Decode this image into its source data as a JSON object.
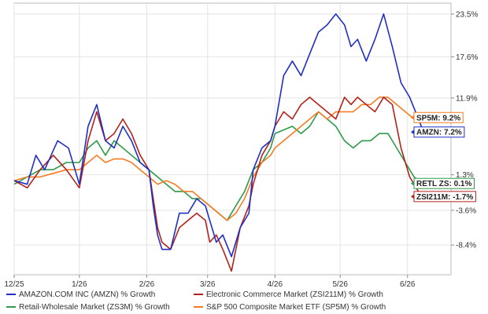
{
  "colors": {
    "amzn": "#1f2fc4",
    "zsi211m": "#b2221b",
    "zs3m": "#2e9a4a",
    "sp5m": "#f57c23"
  },
  "chart_data": {
    "type": "line",
    "title": "",
    "xlabel": "",
    "ylabel": "",
    "ylim": [
      -12.5,
      25
    ],
    "y_ticks": [
      "23.5%",
      "17.6%",
      "11.9%",
      "1.3%",
      "-3.6%",
      "-8.4%"
    ],
    "y_tick_values": [
      23.5,
      17.6,
      11.9,
      1.3,
      -3.6,
      -8.4
    ],
    "x_ticks": [
      "12/25",
      "1/26",
      "2/26",
      "3/26",
      "4/26",
      "5/26",
      "6/26"
    ],
    "x_tick_values": [
      0,
      30,
      61,
      89,
      120,
      150,
      181
    ],
    "grid": true,
    "legend_position": "bottom",
    "series": [
      {
        "key": "amzn",
        "name": "AMAZON.COM INC (AMZN) % Growth",
        "end_label": "AMZN: 7.2%",
        "x": [
          0,
          6,
          10,
          14,
          20,
          25,
          30,
          34,
          38,
          42,
          46,
          50,
          54,
          58,
          62,
          64,
          66,
          68,
          72,
          76,
          80,
          84,
          88,
          90,
          93,
          96,
          100,
          104,
          108,
          110,
          114,
          118,
          120,
          124,
          128,
          132,
          136,
          140,
          144,
          148,
          152,
          155,
          158,
          162,
          166,
          170,
          174,
          178,
          182,
          186,
          188,
          192
        ],
        "values": [
          0.5,
          0,
          4,
          2,
          6,
          5,
          0,
          8,
          11,
          6,
          5,
          8,
          6,
          3,
          2,
          -3,
          -7,
          -9,
          -9,
          -4,
          -4,
          -2,
          -3,
          -5,
          -8,
          -7,
          -10,
          -6,
          -4,
          2,
          5,
          6,
          8,
          15,
          17,
          15,
          18,
          21,
          22,
          23.5,
          22,
          19,
          20,
          17,
          20,
          23.5,
          19,
          14,
          12,
          9,
          7.5,
          7.2
        ]
      },
      {
        "key": "zsi211m",
        "name": "Electronic Commerce Market (ZSI211M) % Growth",
        "end_label": "ZSI211M: -1.7%",
        "x": [
          0,
          6,
          12,
          18,
          24,
          30,
          34,
          38,
          42,
          46,
          50,
          54,
          58,
          62,
          64,
          66,
          68,
          72,
          76,
          80,
          84,
          88,
          90,
          93,
          96,
          100,
          104,
          108,
          110,
          114,
          118,
          120,
          124,
          128,
          132,
          136,
          140,
          144,
          148,
          152,
          155,
          158,
          162,
          166,
          170,
          174,
          178,
          182,
          186,
          188,
          192
        ],
        "values": [
          0.5,
          -0.5,
          2,
          4,
          2,
          -0.5,
          6,
          10,
          6,
          7,
          9,
          7,
          4,
          2,
          -2,
          -6,
          -8,
          -9,
          -6,
          -5,
          -4,
          -5,
          -8,
          -7,
          -9,
          -12,
          -6,
          -3,
          0,
          4,
          6,
          8,
          10,
          9,
          11,
          12,
          11,
          10,
          9,
          12,
          11,
          12,
          11,
          10,
          12,
          11,
          5,
          1,
          -1,
          -1.5,
          -1.7
        ]
      },
      {
        "key": "zs3m",
        "name": "Retail-Wholesale Market (ZS3M) % Growth",
        "end_label": "RETL ZS: 0.1%",
        "x": [
          0,
          6,
          12,
          18,
          24,
          30,
          34,
          38,
          42,
          46,
          50,
          54,
          58,
          62,
          66,
          70,
          74,
          78,
          82,
          86,
          90,
          94,
          98,
          102,
          106,
          110,
          114,
          118,
          120,
          124,
          128,
          132,
          136,
          140,
          144,
          148,
          152,
          156,
          160,
          164,
          168,
          172,
          176,
          180,
          184,
          188,
          192
        ],
        "values": [
          0,
          1,
          2,
          2,
          3,
          3,
          5,
          6,
          4,
          6,
          5,
          4,
          3,
          2,
          1,
          0,
          -1,
          -1,
          -2,
          -2,
          -3,
          -4,
          -5,
          -3,
          -1,
          2,
          3,
          5,
          7,
          7.5,
          8,
          7,
          8,
          10,
          9,
          8,
          6,
          5,
          6,
          6,
          7,
          7,
          5,
          3,
          1,
          0,
          0.1
        ]
      },
      {
        "key": "sp5m",
        "name": "S&P 500 Composite Market ETF (SP5M) % Growth",
        "end_label": "SP5M: 9.2%",
        "x": [
          0,
          6,
          12,
          18,
          24,
          30,
          34,
          38,
          42,
          46,
          50,
          54,
          58,
          62,
          66,
          70,
          74,
          78,
          82,
          86,
          90,
          94,
          98,
          102,
          106,
          110,
          114,
          118,
          120,
          124,
          128,
          132,
          136,
          140,
          144,
          148,
          152,
          156,
          160,
          164,
          168,
          172,
          176,
          180,
          184,
          188,
          192
        ],
        "values": [
          0.5,
          1,
          1,
          1.5,
          2,
          2,
          3,
          4,
          3,
          3.5,
          3.5,
          3,
          2,
          1,
          0,
          0.5,
          0,
          -1,
          -1,
          -2,
          -3,
          -4,
          -5,
          -4,
          -2,
          1,
          3,
          4,
          5,
          6,
          7,
          8,
          9,
          10,
          9,
          10,
          10,
          10,
          11,
          11,
          12,
          12,
          11,
          10,
          9,
          9,
          9.2
        ]
      }
    ]
  }
}
